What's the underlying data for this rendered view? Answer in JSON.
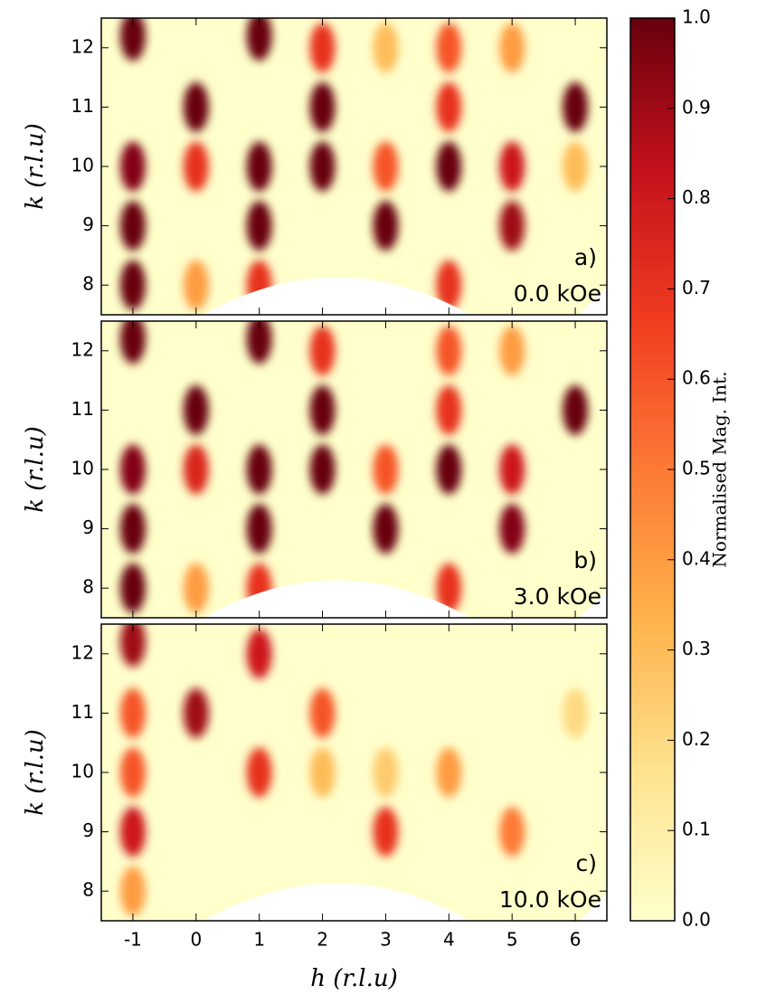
{
  "chart_data": [
    {
      "type": "heatmap",
      "label": "a)",
      "field": "0.0 kOe",
      "ylabel": "k (r.l.u)",
      "xlim": [
        -1.5,
        6.5
      ],
      "ylim": [
        7.5,
        12.5
      ],
      "xticks": [
        -1,
        0,
        1,
        2,
        3,
        4,
        5,
        6
      ],
      "yticks": [
        8,
        9,
        10,
        11,
        12
      ],
      "spots": {
        "x": [
          -1,
          -1,
          -1,
          -1,
          0,
          0,
          1,
          1,
          1,
          1,
          2,
          2,
          2,
          3,
          3,
          4,
          4,
          4,
          4,
          5,
          5,
          5,
          6,
          3,
          0,
          6
        ],
        "y": [
          12.2,
          10,
          9,
          8,
          11,
          10,
          12.2,
          10,
          9,
          8,
          11,
          10,
          12,
          9,
          10,
          10,
          11,
          12,
          8,
          10,
          9,
          12,
          11,
          12,
          8,
          10
        ],
        "values": [
          1.0,
          0.95,
          1.0,
          1.0,
          1.0,
          0.7,
          1.0,
          1.0,
          1.0,
          0.7,
          1.0,
          1.0,
          0.7,
          1.0,
          0.6,
          1.0,
          0.7,
          0.6,
          0.7,
          0.8,
          0.9,
          0.4,
          1.0,
          0.3,
          0.4,
          0.3
        ]
      }
    },
    {
      "type": "heatmap",
      "label": "b)",
      "field": "3.0 kOe",
      "ylabel": "k (r.l.u)",
      "xlim": [
        -1.5,
        6.5
      ],
      "ylim": [
        7.5,
        12.5
      ],
      "xticks": [
        -1,
        0,
        1,
        2,
        3,
        4,
        5,
        6
      ],
      "yticks": [
        8,
        9,
        10,
        11,
        12
      ],
      "spots": {
        "x": [
          -1,
          -1,
          -1,
          -1,
          0,
          0,
          1,
          1,
          1,
          1,
          2,
          2,
          2,
          3,
          3,
          4,
          4,
          4,
          4,
          5,
          5,
          5,
          6,
          0
        ],
        "y": [
          12.2,
          10,
          9,
          8,
          11,
          10,
          12.2,
          10,
          9,
          8,
          11,
          10,
          12,
          9,
          10,
          10,
          11,
          12,
          8,
          10,
          9,
          12,
          11,
          8
        ],
        "values": [
          1.0,
          0.95,
          1.0,
          1.0,
          1.0,
          0.75,
          1.0,
          1.0,
          1.0,
          0.7,
          1.0,
          1.0,
          0.7,
          1.0,
          0.6,
          1.0,
          0.7,
          0.6,
          0.7,
          0.8,
          0.95,
          0.4,
          1.0,
          0.4
        ]
      }
    },
    {
      "type": "heatmap",
      "label": "c)",
      "field": "10.0 kOe",
      "ylabel": "k (r.l.u)",
      "xlabel": "h (r.l.u)",
      "xlim": [
        -1.5,
        6.5
      ],
      "ylim": [
        7.5,
        12.5
      ],
      "xticks": [
        -1,
        0,
        1,
        2,
        3,
        4,
        5,
        6
      ],
      "yticks": [
        8,
        9,
        10,
        11,
        12
      ],
      "spots": {
        "x": [
          -1,
          -1,
          -1,
          -1,
          -1,
          0,
          1,
          1,
          2,
          2,
          3,
          3,
          4,
          5,
          6
        ],
        "y": [
          12.2,
          11,
          10,
          9,
          8,
          11,
          12,
          10,
          11,
          10,
          9,
          10,
          10,
          9,
          11
        ],
        "values": [
          0.9,
          0.6,
          0.6,
          0.8,
          0.4,
          0.9,
          0.8,
          0.7,
          0.6,
          0.3,
          0.7,
          0.25,
          0.4,
          0.5,
          0.2
        ]
      }
    },
    {
      "type": "colorbar",
      "label": "Normalised Mag. Int.",
      "clim": [
        0,
        1
      ],
      "ticks": [
        {
          "value": 0,
          "label": "0.0"
        },
        {
          "value": 0.1,
          "label": "0.1"
        },
        {
          "value": 0.2,
          "label": "0.2"
        },
        {
          "value": 0.3,
          "label": "0.3"
        },
        {
          "value": 0.4,
          "label": "0.4"
        },
        {
          "value": 0.5,
          "label": "0.5"
        },
        {
          "value": 0.6,
          "label": "0.6"
        },
        {
          "value": 0.7,
          "label": "0.7"
        },
        {
          "value": 0.8,
          "label": "0.8"
        },
        {
          "value": 0.9,
          "label": "0.9"
        },
        {
          "value": 1,
          "label": "1.0"
        }
      ],
      "colors": [
        "#ffffcc",
        "#fee38f",
        "#feb24c",
        "#fd7a35",
        "#f03b20",
        "#c4111c",
        "#67000d"
      ]
    }
  ]
}
